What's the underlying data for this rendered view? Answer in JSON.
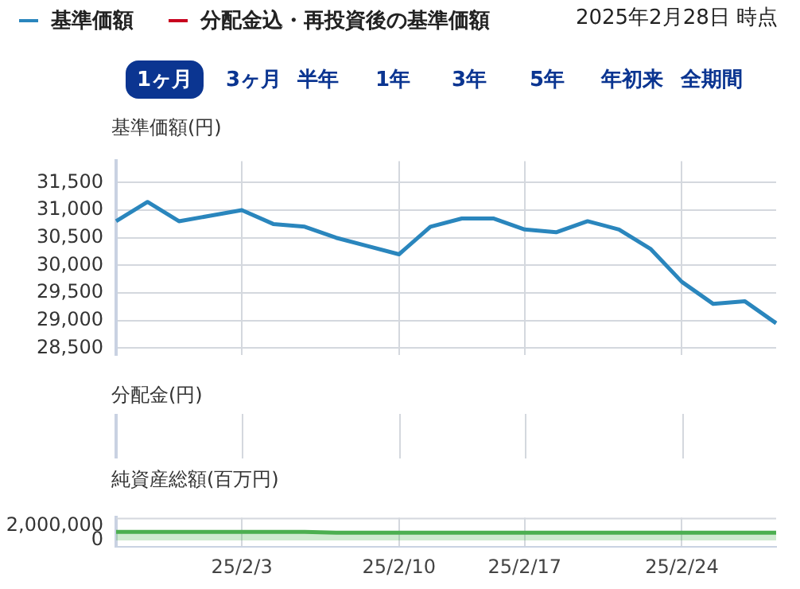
{
  "chart_data": [
    {
      "type": "line",
      "ylabel": "基準価額(円)",
      "legend": "top left",
      "grid": true,
      "tick_labels": "y",
      "annotations": [
        "2025年2月28日 時点",
        "1ヶ月",
        "3ヶ月",
        "半年",
        "1年",
        "3年",
        "5年",
        "年初来",
        "全期間"
      ],
      "categories": [
        null,
        null,
        null,
        null,
        null,
        null,
        null,
        null,
        null,
        null,
        null,
        null,
        null,
        null,
        null,
        null,
        null,
        null,
        null,
        null,
        null,
        null
      ],
      "ylim": [
        28380,
        31890
      ],
      "yticks": [
        {
          "value": 28500,
          "label": "28,500"
        },
        {
          "value": 29000,
          "label": "29,000"
        },
        {
          "value": 29500,
          "label": "29,500"
        },
        {
          "value": 30000,
          "label": "30,000"
        },
        {
          "value": 30500,
          "label": "30,500"
        },
        {
          "value": 31000,
          "label": "31,000"
        },
        {
          "value": 31500,
          "label": "31,500"
        }
      ],
      "series": [
        {
          "name": "基準価額",
          "color": "#2a86bd",
          "values": [
            30800,
            31150,
            30800,
            30900,
            31000,
            30750,
            30700,
            30500,
            30350,
            30200,
            30700,
            30850,
            30850,
            30650,
            30600,
            30800,
            30650,
            30300,
            29700,
            29300,
            29350,
            28950
          ]
        },
        {
          "name": "分配金込・再投資後の基準価額",
          "color": "#c8001e",
          "values": [
            null,
            null,
            null,
            null,
            null,
            null,
            null,
            null,
            null,
            null,
            null,
            null,
            null,
            null,
            null,
            null,
            null,
            null,
            null,
            null,
            null,
            null
          ]
        }
      ]
    },
    {
      "type": "other",
      "ylabel": "分配金(円)"
    },
    {
      "type": "area",
      "ylabel": "純資産総額(百万円)",
      "grid": "x",
      "categories": [
        null,
        null,
        null,
        null,
        "25/2/3",
        null,
        null,
        null,
        null,
        "25/2/10",
        null,
        null,
        null,
        "25/2/17",
        null,
        null,
        null,
        null,
        "25/2/24",
        null,
        null,
        null
      ],
      "ylim": [
        -900000,
        3200000
      ],
      "yticks": [
        {
          "value": 0,
          "label": "0"
        },
        {
          "value": 2000000,
          "label": "2,000,000"
        }
      ],
      "series": [
        {
          "color": "#4caf50",
          "values": [
            1200000,
            1200000,
            1200000,
            1200000,
            1200000,
            1200000,
            1200000,
            1100000,
            1100000,
            1100000,
            1100000,
            1100000,
            1100000,
            1100000,
            1100000,
            1100000,
            1100000,
            1100000,
            1100000,
            1100000,
            1100000,
            1100000
          ]
        }
      ]
    }
  ]
}
